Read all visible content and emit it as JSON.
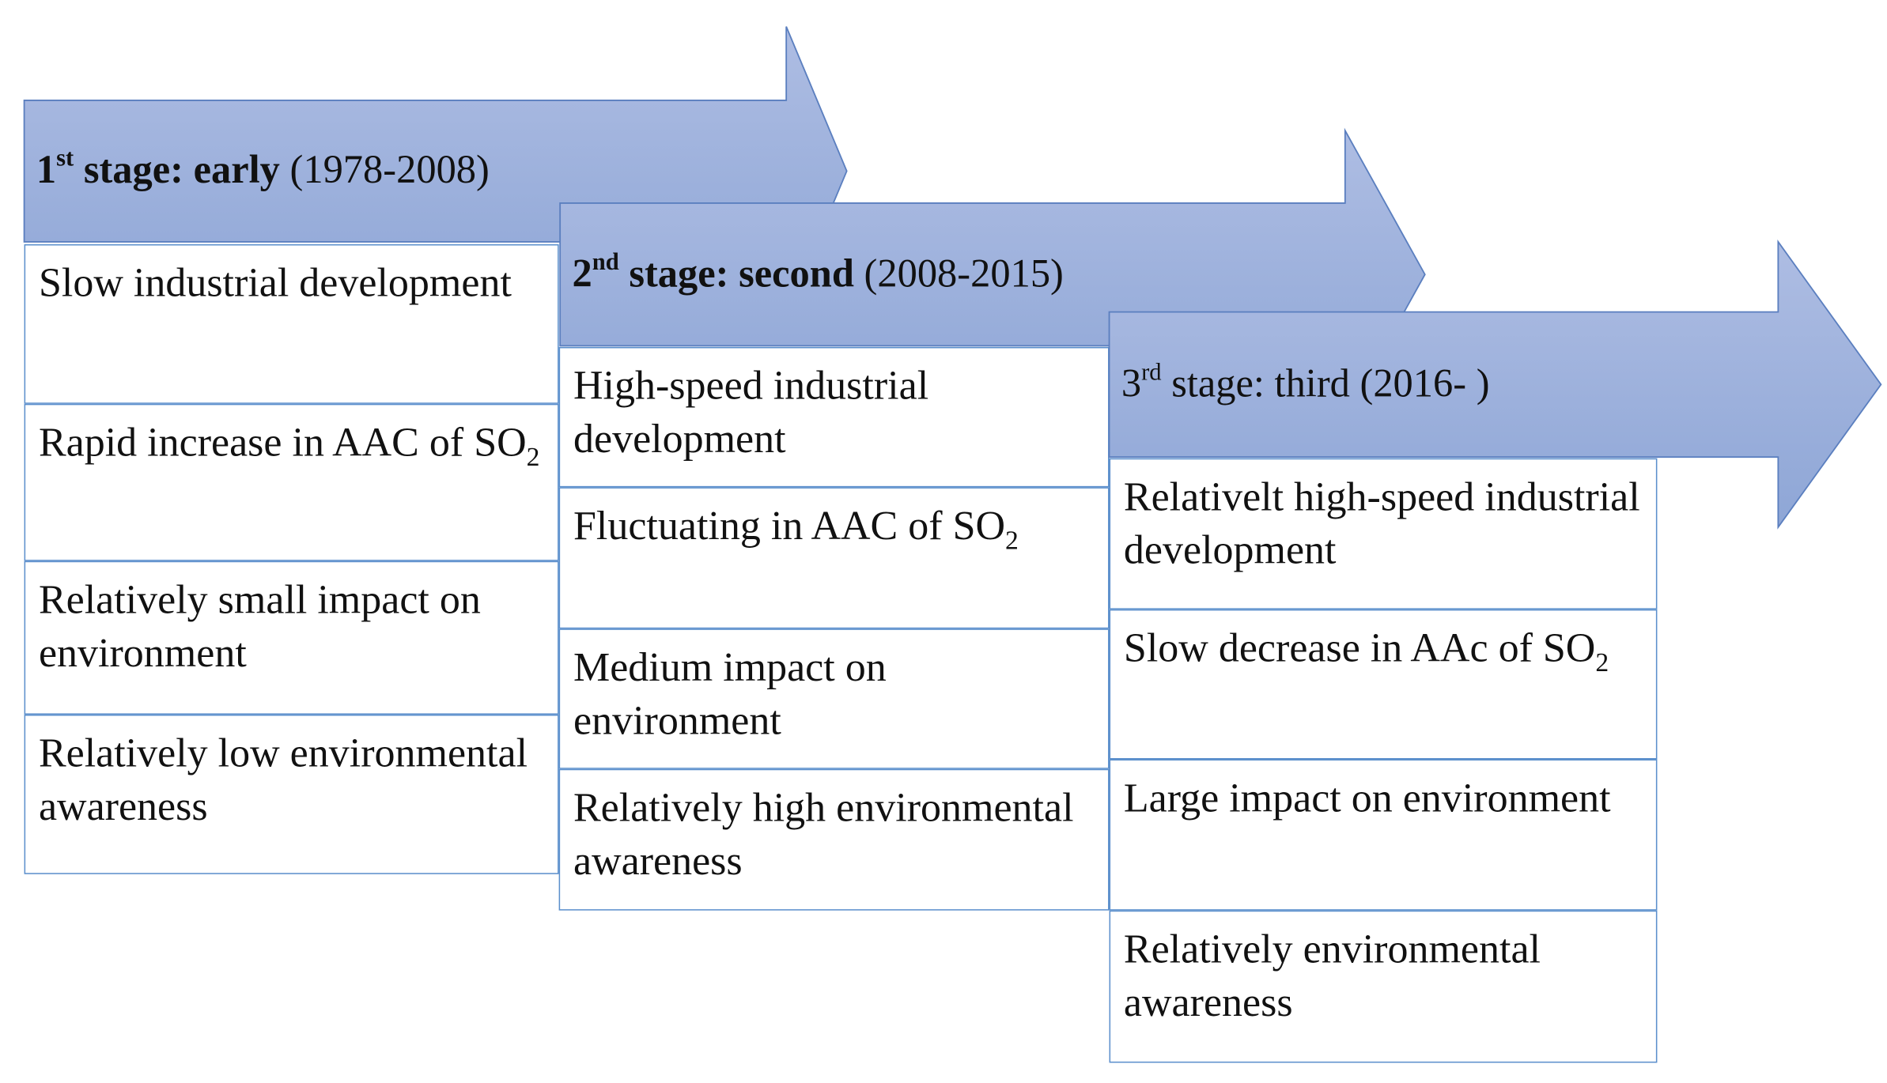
{
  "stages": [
    {
      "header": {
        "ordinal": "1",
        "suffix": "st",
        "name": "stage: early",
        "period": "(1978-2008)"
      },
      "items": [
        {
          "text": "Slow industrial development"
        },
        {
          "text": "Rapid increase in AAC of SO",
          "sub": "2"
        },
        {
          "text": "Relatively small impact on environment"
        },
        {
          "text": "Relatively low environmental awareness"
        }
      ]
    },
    {
      "header": {
        "ordinal": "2",
        "suffix": "nd",
        "name": "stage: second",
        "period": "(2008-2015)"
      },
      "items": [
        {
          "text": "High-speed industrial development"
        },
        {
          "text": "Fluctuating in AAC of SO",
          "sub": "2"
        },
        {
          "text": "Medium impact on environment"
        },
        {
          "text": "Relatively high environmental awareness"
        }
      ]
    },
    {
      "header": {
        "ordinal": "3",
        "suffix": "rd",
        "name": "stage: third",
        "period": "(2016- )"
      },
      "items": [
        {
          "text": "Relativelt high-speed industrial development"
        },
        {
          "text": "Slow decrease in AAc of SO",
          "sub": "2"
        },
        {
          "text": "Large impact on environment"
        },
        {
          "text": "Relatively environmental awareness"
        }
      ]
    }
  ]
}
